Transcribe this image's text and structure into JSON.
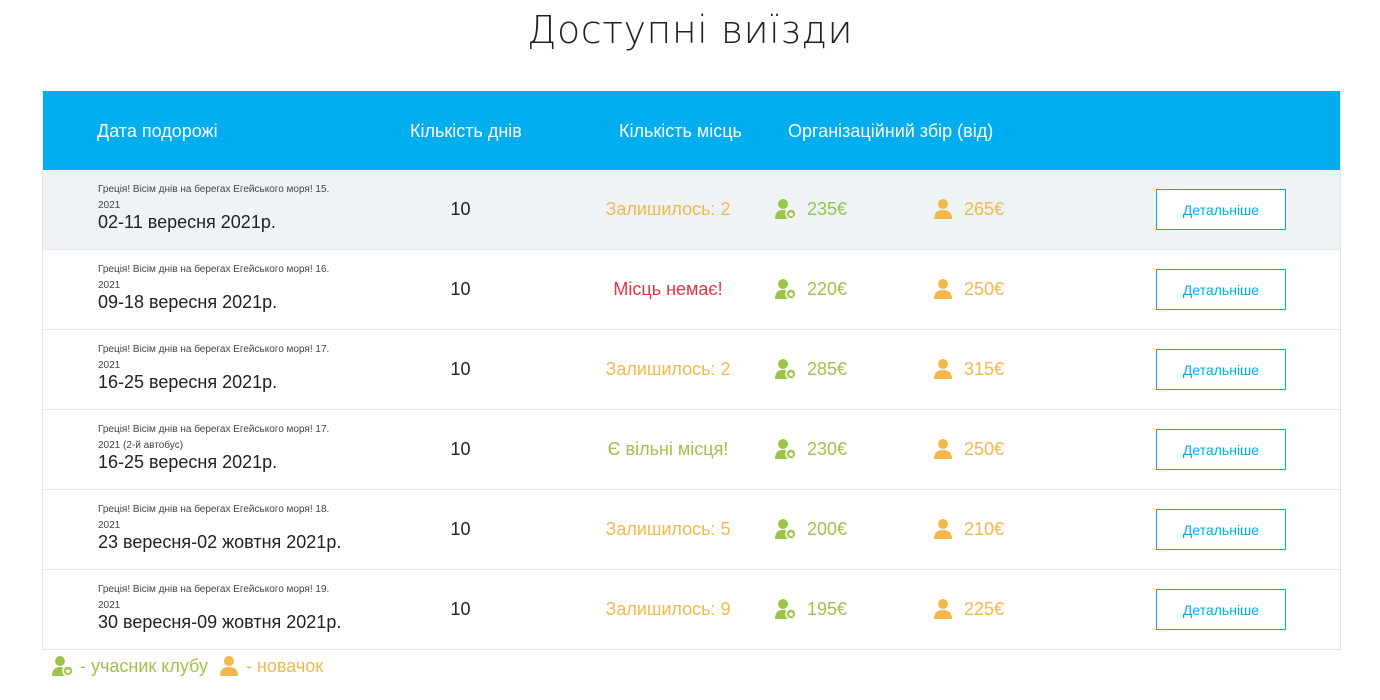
{
  "page_title": "Доступні виїзди",
  "headers": {
    "date": "Дата подорожі",
    "days": "Кількість днів",
    "seats": "Кількість місць",
    "fee": "Організаційний збір (від)"
  },
  "colors": {
    "header_bg": "#00aeef",
    "member": "#9cc44a",
    "newbie": "#f2b84c",
    "no_seats": "#e8333f",
    "button": "#00aeef"
  },
  "details_label": "Детальніше",
  "rows": [
    {
      "subtitle": "Греція! Вісім днів на берегах Егейського моря! 15. 2021",
      "date": "02-11 вересня 2021р.",
      "days": "10",
      "status": "Залишилось: 2",
      "status_type": "few",
      "member_price": "235€",
      "newbie_price": "265€"
    },
    {
      "subtitle": "Греція! Вісім днів на берегах Егейського моря! 16. 2021",
      "date": "09-18 вересня 2021р.",
      "days": "10",
      "status": "Місць немає!",
      "status_type": "none",
      "member_price": "220€",
      "newbie_price": "250€"
    },
    {
      "subtitle": "Греція! Вісім днів на берегах Егейського моря! 17. 2021",
      "date": "16-25 вересня 2021р.",
      "days": "10",
      "status": "Залишилось: 2",
      "status_type": "few",
      "member_price": "285€",
      "newbie_price": "315€"
    },
    {
      "subtitle": "Греція! Вісім днів на берегах Егейського моря! 17. 2021 (2-й автобус)",
      "date": "16-25 вересня 2021р.",
      "days": "10",
      "status": "Є вільні місця!",
      "status_type": "free",
      "member_price": "230€",
      "newbie_price": "250€"
    },
    {
      "subtitle": "Греція! Вісім днів на берегах Егейського моря! 18. 2021",
      "date": "23 вересня-02 жовтня 2021р.",
      "days": "10",
      "status": "Залишилось: 5",
      "status_type": "few",
      "member_price": "200€",
      "newbie_price": "210€"
    },
    {
      "subtitle": "Греція! Вісім днів на берегах Егейського моря! 19. 2021",
      "date": "30 вересня-09 жовтня 2021р.",
      "days": "10",
      "status": "Залишилось: 9",
      "status_type": "few",
      "member_price": "195€",
      "newbie_price": "225€"
    }
  ],
  "legend": {
    "member": "- учасник клубу",
    "member_icon": "club-member-icon",
    "newbie": "- новачок",
    "newbie_icon": "newbie-icon"
  }
}
